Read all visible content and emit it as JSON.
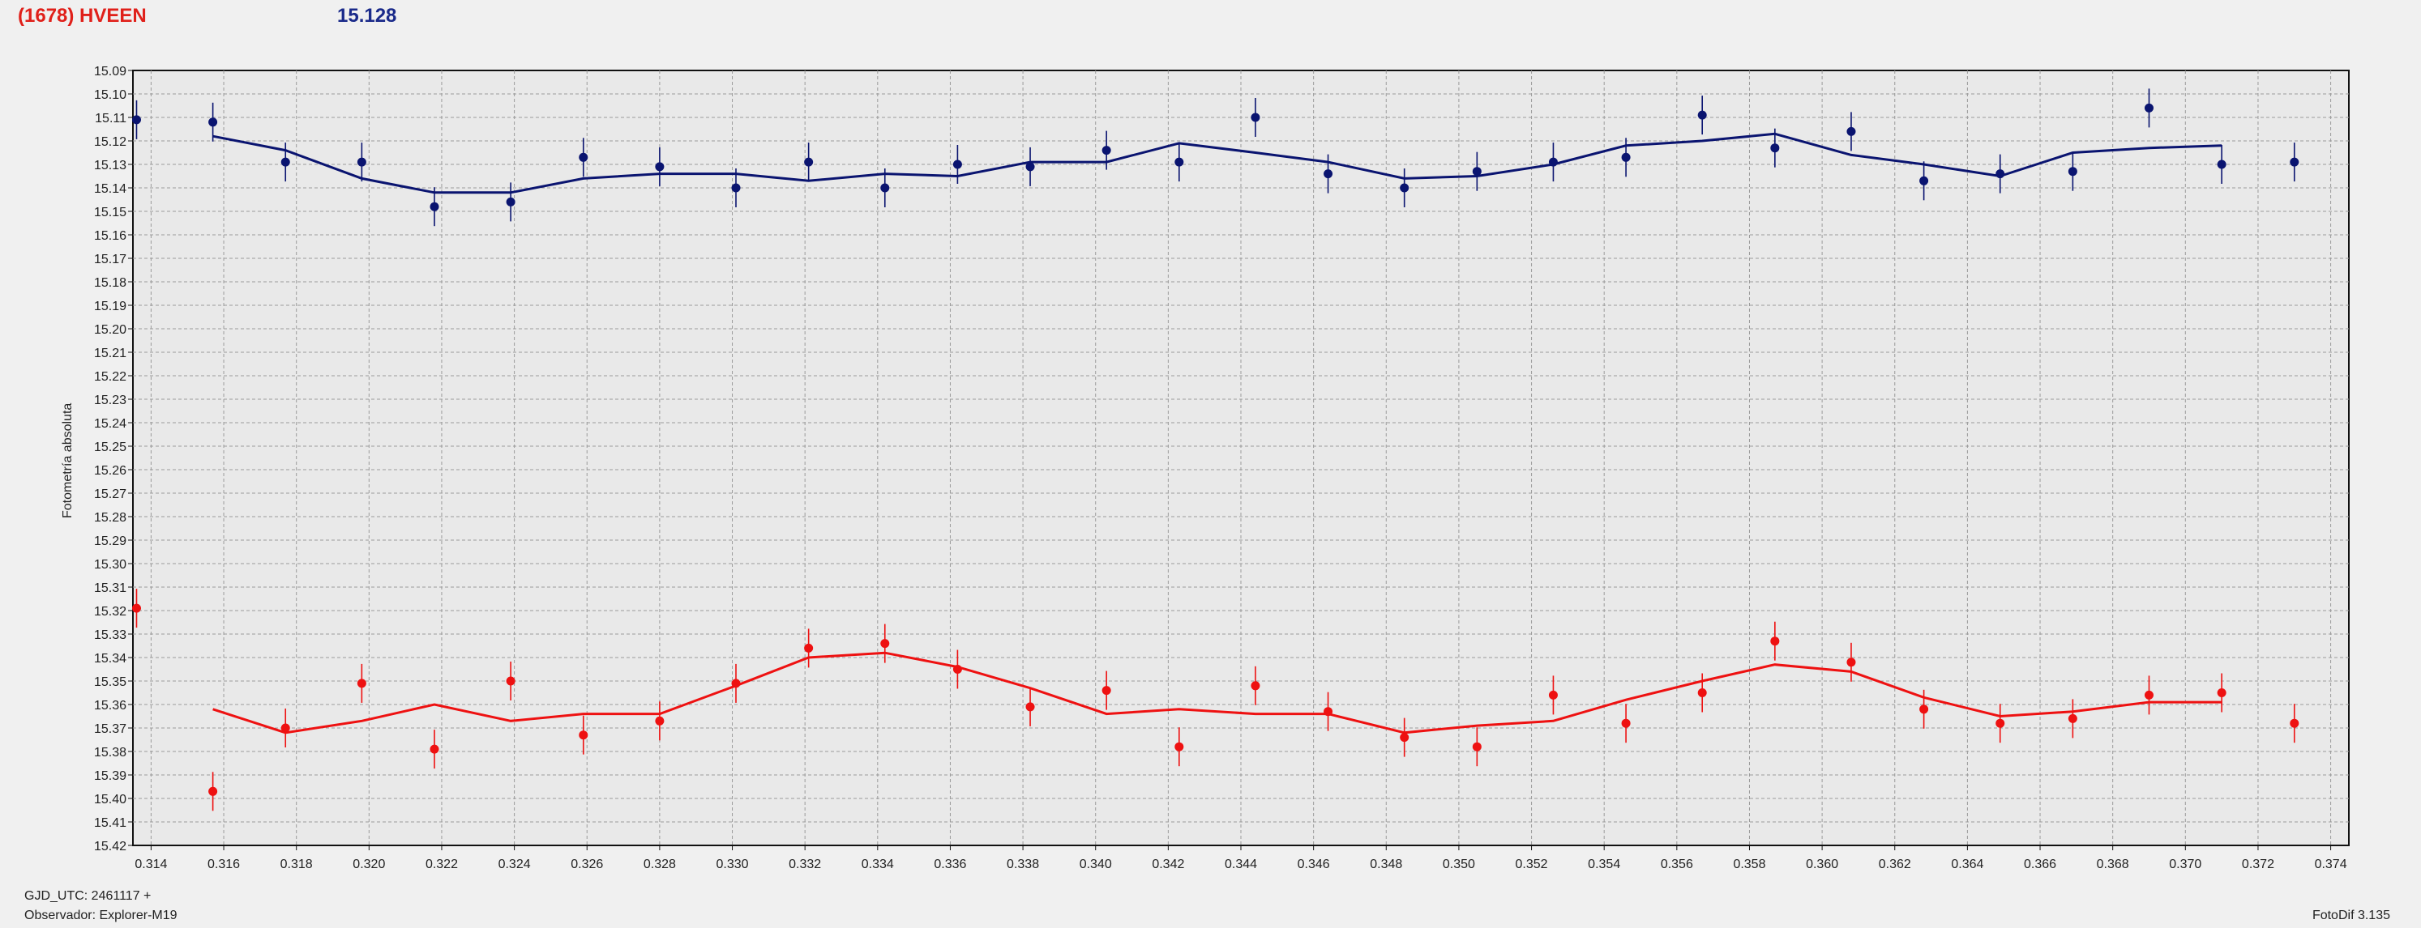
{
  "header": {
    "title": "(1678) HVEEN",
    "mean_value": "15.128"
  },
  "footer": {
    "gjd": "GJD_UTC: 2461117 +",
    "observer": "Observador: Explorer-M19",
    "version": "FotoDif 3.135"
  },
  "colors": {
    "blue_series": "#0a1470",
    "red_series": "#ee1111",
    "grid": "#9a9a9a",
    "plot_bg": "#e9e9e9"
  },
  "chart_data": {
    "type": "scatter",
    "title": "",
    "xlabel": "",
    "ylabel": "Fotometría absoluta",
    "xlim": [
      0.3135,
      0.3745
    ],
    "ylim": [
      15.09,
      15.42
    ],
    "y_inverted": true,
    "grid": true,
    "x_ticks": [
      "0.314",
      "0.316",
      "0.318",
      "0.320",
      "0.322",
      "0.324",
      "0.326",
      "0.328",
      "0.330",
      "0.332",
      "0.334",
      "0.336",
      "0.338",
      "0.340",
      "0.342",
      "0.344",
      "0.346",
      "0.348",
      "0.350",
      "0.352",
      "0.354",
      "0.356",
      "0.358",
      "0.360",
      "0.362",
      "0.364",
      "0.366",
      "0.368",
      "0.370",
      "0.372",
      "0.374"
    ],
    "y_ticks": [
      "15.09",
      "15.10",
      "15.11",
      "15.12",
      "15.13",
      "15.14",
      "15.15",
      "15.16",
      "15.17",
      "15.18",
      "15.19",
      "15.20",
      "15.21",
      "15.22",
      "15.23",
      "15.24",
      "15.25",
      "15.26",
      "15.27",
      "15.28",
      "15.29",
      "15.30",
      "15.31",
      "15.32",
      "15.33",
      "15.34",
      "15.35",
      "15.36",
      "15.37",
      "15.38",
      "15.39",
      "15.40",
      "15.41",
      "15.42"
    ],
    "series": [
      {
        "color": "#0a1470",
        "points": [
          {
            "x": 0.3136,
            "y": 15.111
          },
          {
            "x": 0.3157,
            "y": 15.112
          },
          {
            "x": 0.3177,
            "y": 15.129
          },
          {
            "x": 0.3198,
            "y": 15.129
          },
          {
            "x": 0.3218,
            "y": 15.148
          },
          {
            "x": 0.3239,
            "y": 15.146
          },
          {
            "x": 0.3259,
            "y": 15.127
          },
          {
            "x": 0.328,
            "y": 15.131
          },
          {
            "x": 0.3301,
            "y": 15.14
          },
          {
            "x": 0.3321,
            "y": 15.129
          },
          {
            "x": 0.3342,
            "y": 15.14
          },
          {
            "x": 0.3362,
            "y": 15.13
          },
          {
            "x": 0.3382,
            "y": 15.131
          },
          {
            "x": 0.3403,
            "y": 15.124
          },
          {
            "x": 0.3423,
            "y": 15.129
          },
          {
            "x": 0.3444,
            "y": 15.11
          },
          {
            "x": 0.3464,
            "y": 15.134
          },
          {
            "x": 0.3485,
            "y": 15.14
          },
          {
            "x": 0.3505,
            "y": 15.133
          },
          {
            "x": 0.3526,
            "y": 15.129
          },
          {
            "x": 0.3546,
            "y": 15.127
          },
          {
            "x": 0.3567,
            "y": 15.109
          },
          {
            "x": 0.3587,
            "y": 15.123
          },
          {
            "x": 0.3608,
            "y": 15.116
          },
          {
            "x": 0.3628,
            "y": 15.137
          },
          {
            "x": 0.3649,
            "y": 15.134
          },
          {
            "x": 0.3669,
            "y": 15.133
          },
          {
            "x": 0.369,
            "y": 15.106
          },
          {
            "x": 0.371,
            "y": 15.13
          },
          {
            "x": 0.373,
            "y": 15.129
          }
        ],
        "trend": [
          {
            "x": 0.3157,
            "y": 15.118
          },
          {
            "x": 0.3177,
            "y": 15.124
          },
          {
            "x": 0.3198,
            "y": 15.136
          },
          {
            "x": 0.3218,
            "y": 15.142
          },
          {
            "x": 0.3239,
            "y": 15.142
          },
          {
            "x": 0.3259,
            "y": 15.136
          },
          {
            "x": 0.328,
            "y": 15.134
          },
          {
            "x": 0.3301,
            "y": 15.134
          },
          {
            "x": 0.3321,
            "y": 15.137
          },
          {
            "x": 0.3342,
            "y": 15.134
          },
          {
            "x": 0.3362,
            "y": 15.135
          },
          {
            "x": 0.3382,
            "y": 15.129
          },
          {
            "x": 0.3403,
            "y": 15.129
          },
          {
            "x": 0.3423,
            "y": 15.121
          },
          {
            "x": 0.3444,
            "y": 15.125
          },
          {
            "x": 0.3464,
            "y": 15.129
          },
          {
            "x": 0.3485,
            "y": 15.136
          },
          {
            "x": 0.3505,
            "y": 15.135
          },
          {
            "x": 0.3526,
            "y": 15.13
          },
          {
            "x": 0.3546,
            "y": 15.122
          },
          {
            "x": 0.3567,
            "y": 15.12
          },
          {
            "x": 0.3587,
            "y": 15.117
          },
          {
            "x": 0.3608,
            "y": 15.126
          },
          {
            "x": 0.3628,
            "y": 15.13
          },
          {
            "x": 0.3649,
            "y": 15.135
          },
          {
            "x": 0.3669,
            "y": 15.125
          },
          {
            "x": 0.369,
            "y": 15.123
          },
          {
            "x": 0.371,
            "y": 15.122
          }
        ]
      },
      {
        "color": "#ee1111",
        "points": [
          {
            "x": 0.3136,
            "y": 15.319
          },
          {
            "x": 0.3157,
            "y": 15.397
          },
          {
            "x": 0.3177,
            "y": 15.37
          },
          {
            "x": 0.3198,
            "y": 15.351
          },
          {
            "x": 0.3218,
            "y": 15.379
          },
          {
            "x": 0.3239,
            "y": 15.35
          },
          {
            "x": 0.3259,
            "y": 15.373
          },
          {
            "x": 0.328,
            "y": 15.367
          },
          {
            "x": 0.3301,
            "y": 15.351
          },
          {
            "x": 0.3321,
            "y": 15.336
          },
          {
            "x": 0.3342,
            "y": 15.334
          },
          {
            "x": 0.3362,
            "y": 15.345
          },
          {
            "x": 0.3382,
            "y": 15.361
          },
          {
            "x": 0.3403,
            "y": 15.354
          },
          {
            "x": 0.3423,
            "y": 15.378
          },
          {
            "x": 0.3444,
            "y": 15.352
          },
          {
            "x": 0.3464,
            "y": 15.363
          },
          {
            "x": 0.3485,
            "y": 15.374
          },
          {
            "x": 0.3505,
            "y": 15.378
          },
          {
            "x": 0.3526,
            "y": 15.356
          },
          {
            "x": 0.3546,
            "y": 15.368
          },
          {
            "x": 0.3567,
            "y": 15.355
          },
          {
            "x": 0.3587,
            "y": 15.333
          },
          {
            "x": 0.3608,
            "y": 15.342
          },
          {
            "x": 0.3628,
            "y": 15.362
          },
          {
            "x": 0.3649,
            "y": 15.368
          },
          {
            "x": 0.3669,
            "y": 15.366
          },
          {
            "x": 0.369,
            "y": 15.356
          },
          {
            "x": 0.371,
            "y": 15.355
          },
          {
            "x": 0.373,
            "y": 15.368
          }
        ],
        "trend": [
          {
            "x": 0.3157,
            "y": 15.362
          },
          {
            "x": 0.3177,
            "y": 15.372
          },
          {
            "x": 0.3198,
            "y": 15.367
          },
          {
            "x": 0.3218,
            "y": 15.36
          },
          {
            "x": 0.3239,
            "y": 15.367
          },
          {
            "x": 0.3259,
            "y": 15.364
          },
          {
            "x": 0.328,
            "y": 15.364
          },
          {
            "x": 0.3301,
            "y": 15.352
          },
          {
            "x": 0.3321,
            "y": 15.34
          },
          {
            "x": 0.3342,
            "y": 15.338
          },
          {
            "x": 0.3362,
            "y": 15.344
          },
          {
            "x": 0.3382,
            "y": 15.353
          },
          {
            "x": 0.3403,
            "y": 15.364
          },
          {
            "x": 0.3423,
            "y": 15.362
          },
          {
            "x": 0.3444,
            "y": 15.364
          },
          {
            "x": 0.3464,
            "y": 15.364
          },
          {
            "x": 0.3485,
            "y": 15.372
          },
          {
            "x": 0.3505,
            "y": 15.369
          },
          {
            "x": 0.3526,
            "y": 15.367
          },
          {
            "x": 0.3546,
            "y": 15.358
          },
          {
            "x": 0.3567,
            "y": 15.35
          },
          {
            "x": 0.3587,
            "y": 15.343
          },
          {
            "x": 0.3608,
            "y": 15.346
          },
          {
            "x": 0.3628,
            "y": 15.357
          },
          {
            "x": 0.3649,
            "y": 15.365
          },
          {
            "x": 0.3669,
            "y": 15.363
          },
          {
            "x": 0.369,
            "y": 15.359
          },
          {
            "x": 0.371,
            "y": 15.359
          }
        ]
      }
    ]
  }
}
